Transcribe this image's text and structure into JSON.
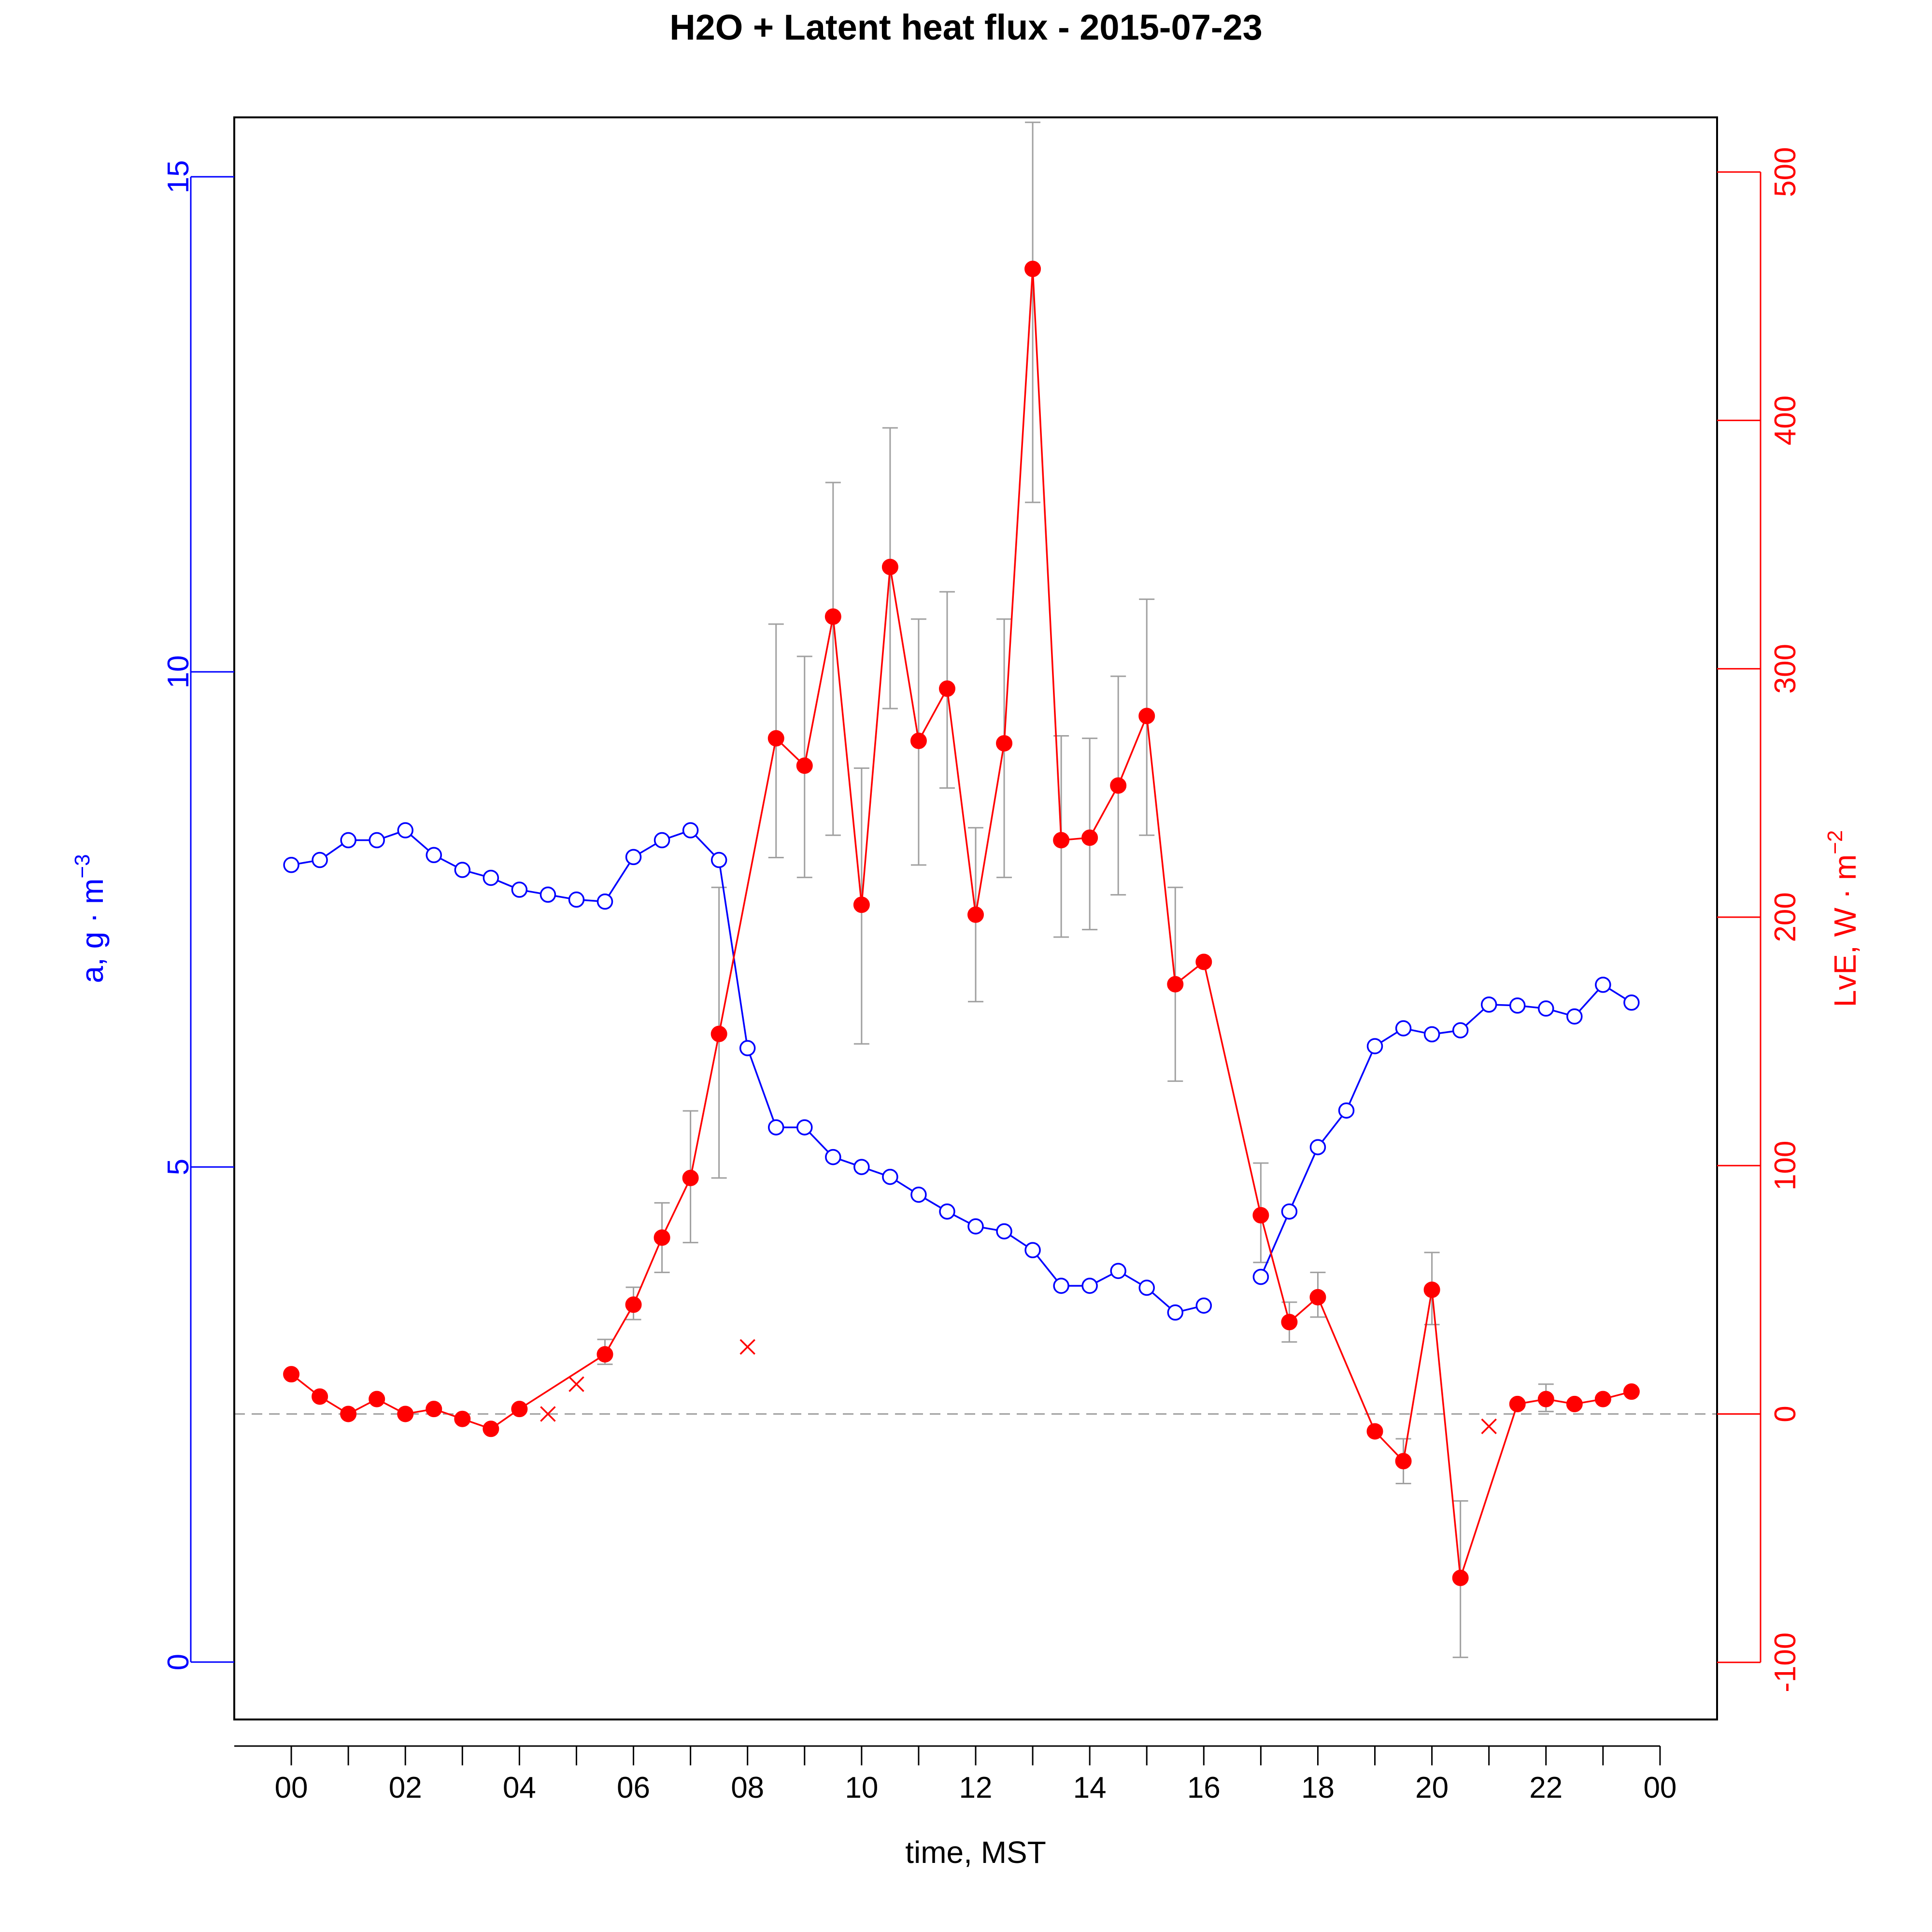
{
  "chart_data": {
    "type": "line",
    "title": "H2O + Latent heat flux -  2015-07-23",
    "xlabel": "time, MST",
    "x_tick_labels": [
      "00",
      "02",
      "04",
      "06",
      "08",
      "10",
      "12",
      "14",
      "16",
      "18",
      "20",
      "22",
      "00"
    ],
    "x_range_hours": [
      -1,
      25
    ],
    "left_axis": {
      "label": "a, g · m",
      "label_superscript": "−3",
      "color": "#0000ff",
      "range": [
        -0.58,
        15.6
      ],
      "ticks": [
        0,
        5,
        10,
        15
      ],
      "tick_labels": [
        "0",
        "5",
        "10",
        "15"
      ]
    },
    "right_axis": {
      "label": "LvE, W · m",
      "label_superscript": "−2",
      "color": "#ff0000",
      "range": [
        -123,
        522
      ],
      "ticks": [
        -100,
        0,
        100,
        200,
        300,
        400,
        500
      ],
      "tick_labels": [
        "-100",
        "0",
        "100",
        "200",
        "300",
        "400",
        "500"
      ]
    },
    "zero_line": {
      "value": 0,
      "style": "dashed",
      "color": "#a0a0a0"
    },
    "series": [
      {
        "axis": "left",
        "style": "open-circle-line",
        "color": "#0000ff",
        "x": [
          0,
          0.5,
          1,
          1.5,
          2,
          2.5,
          3,
          3.5,
          4,
          4.5,
          5,
          5.5,
          6,
          6.5,
          7,
          7.5,
          8,
          8.5,
          9,
          9.5,
          10,
          10.5,
          11,
          11.5,
          12,
          12.5,
          13,
          13.5,
          14,
          14.5,
          15,
          15.5,
          16,
          17,
          17.5,
          18,
          18.5,
          19,
          19.5,
          20,
          20.5,
          21,
          21.5,
          22,
          22.5,
          23,
          23.5
        ],
        "y": [
          8.05,
          8.1,
          8.3,
          8.3,
          8.4,
          8.15,
          8.0,
          7.92,
          7.8,
          7.75,
          7.7,
          7.68,
          8.13,
          8.3,
          8.4,
          8.1,
          6.2,
          5.4,
          5.4,
          5.1,
          5.0,
          4.9,
          4.72,
          4.55,
          4.4,
          4.35,
          4.16,
          3.8,
          3.8,
          3.95,
          3.78,
          3.53,
          3.6,
          3.89,
          4.55,
          5.2,
          5.57,
          6.22,
          6.4,
          6.34,
          6.38,
          6.64,
          6.63,
          6.6,
          6.52,
          6.84,
          6.66
        ],
        "segments": [
          [
            0,
            32
          ],
          [
            33,
            46
          ]
        ]
      },
      {
        "axis": "right",
        "style": "filled-point-line",
        "color": "#ff0000",
        "x": [
          0,
          0.5,
          1,
          1.5,
          2,
          2.5,
          3,
          3.5,
          4,
          5.5,
          6,
          6.5,
          7,
          7.5,
          8.5,
          9,
          9.5,
          10,
          10.5,
          11,
          11.5,
          12,
          12.5,
          13,
          13.5,
          14,
          14.5,
          15,
          15.5,
          16,
          17,
          17.5,
          18,
          19,
          19.5,
          20,
          20.5,
          21.5,
          22,
          22.5,
          23,
          23.5
        ],
        "y": [
          16,
          7,
          0,
          6,
          0,
          2,
          -2,
          -6,
          2,
          24,
          44,
          71,
          95,
          153,
          272,
          261,
          321,
          205,
          341,
          271,
          292,
          201,
          270,
          461,
          231,
          232,
          253,
          281,
          173,
          182,
          80,
          37,
          47,
          -7,
          -19,
          50,
          -66,
          4,
          6,
          4,
          6,
          9
        ],
        "error_low": [
          null,
          null,
          null,
          null,
          null,
          null,
          null,
          null,
          null,
          20,
          38,
          57,
          69,
          95,
          224,
          216,
          233,
          149,
          284,
          221,
          252,
          166,
          216,
          367,
          192,
          195,
          209,
          233,
          134,
          null,
          61,
          29,
          39,
          null,
          -28,
          36,
          -98,
          null,
          1,
          null,
          null,
          null
        ],
        "error_high": [
          null,
          null,
          null,
          null,
          null,
          null,
          null,
          null,
          null,
          30,
          51,
          85,
          122,
          212,
          318,
          305,
          375,
          260,
          397,
          320,
          331,
          236,
          320,
          520,
          273,
          272,
          297,
          328,
          212,
          null,
          101,
          45,
          57,
          null,
          -10,
          65,
          -35,
          null,
          12,
          null,
          null,
          null
        ],
        "segments": [
          [
            0,
            8
          ],
          [
            8,
            9
          ],
          [
            9,
            36
          ],
          [
            36,
            37
          ],
          [
            37,
            41
          ]
        ]
      },
      {
        "axis": "right",
        "style": "cross-markers",
        "color": "#ff0000",
        "x": [
          4.5,
          5,
          8,
          21
        ],
        "y": [
          0,
          12,
          27,
          -5
        ]
      }
    ]
  }
}
